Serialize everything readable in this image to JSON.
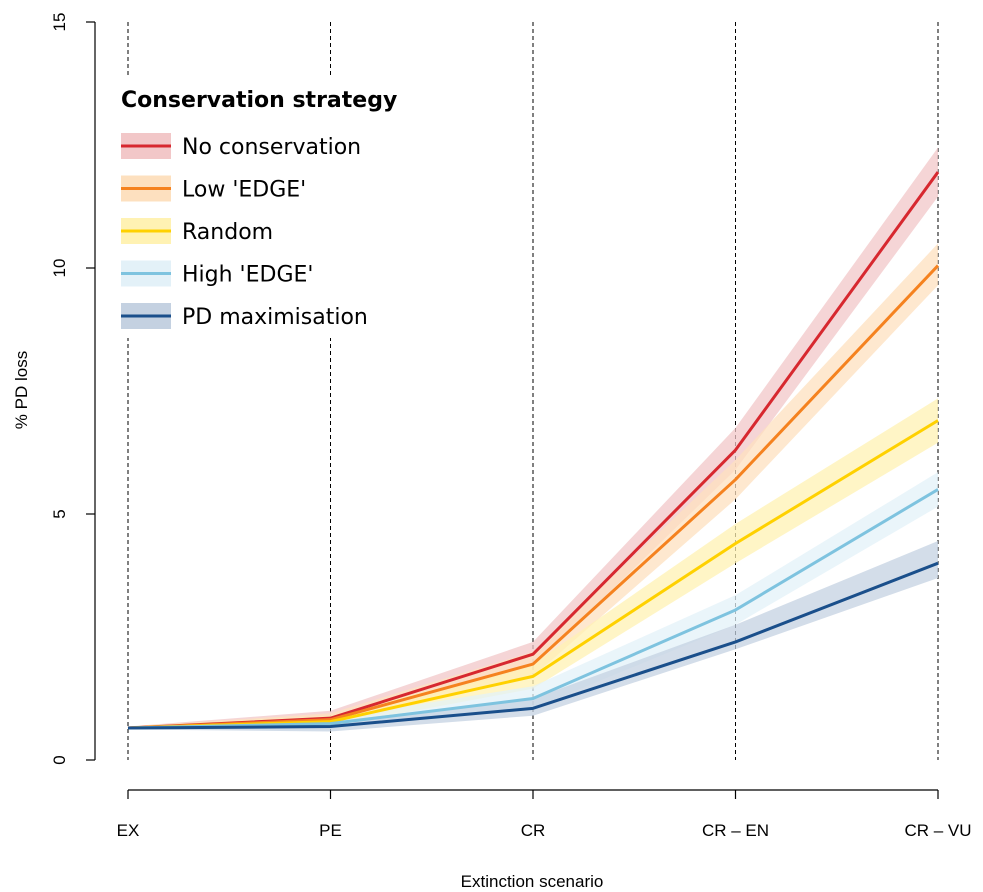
{
  "chart_data": {
    "type": "line",
    "xlabel": "Extinction scenario",
    "ylabel": "% PD loss",
    "categories": [
      "EX",
      "PE",
      "CR",
      "CR – EN",
      "CR – VU"
    ],
    "ylim": [
      0,
      15
    ],
    "yticks": [
      "0",
      "5",
      "10",
      "15"
    ],
    "grid": false,
    "legend": {
      "title": "Conservation strategy",
      "placement": "top-left"
    },
    "series": [
      {
        "name": "No conservation",
        "color": "#d7282f",
        "band_color": "#f2c7c8",
        "values": [
          0.65,
          0.85,
          2.15,
          6.3,
          11.95
        ],
        "lower": [
          0.62,
          0.72,
          1.9,
          5.9,
          11.45
        ],
        "upper": [
          0.68,
          1.0,
          2.4,
          6.75,
          12.45
        ]
      },
      {
        "name": "Low 'EDGE'",
        "color": "#f5821f",
        "band_color": "#fde0bf",
        "values": [
          0.65,
          0.82,
          1.95,
          5.7,
          10.05
        ],
        "lower": [
          0.62,
          0.7,
          1.7,
          5.3,
          9.65
        ],
        "upper": [
          0.68,
          0.95,
          2.2,
          6.1,
          10.5
        ]
      },
      {
        "name": "Random",
        "color": "#ffd100",
        "band_color": "#fff2b3",
        "values": [
          0.65,
          0.78,
          1.7,
          4.4,
          6.9
        ],
        "lower": [
          0.62,
          0.68,
          1.45,
          4.0,
          6.45
        ],
        "upper": [
          0.68,
          0.9,
          1.95,
          4.8,
          7.35
        ]
      },
      {
        "name": "High 'EDGE'",
        "color": "#7ec3df",
        "band_color": "#e3f1f8",
        "values": [
          0.65,
          0.74,
          1.25,
          3.05,
          5.5
        ],
        "lower": [
          0.62,
          0.64,
          1.05,
          2.75,
          5.15
        ],
        "upper": [
          0.68,
          0.85,
          1.5,
          3.35,
          5.85
        ]
      },
      {
        "name": "PD maximisation",
        "color": "#1a4f8b",
        "band_color": "#c4d1e1",
        "values": [
          0.65,
          0.68,
          1.05,
          2.4,
          4.0
        ],
        "lower": [
          0.62,
          0.58,
          0.9,
          2.25,
          3.7
        ],
        "upper": [
          0.68,
          0.78,
          1.25,
          2.75,
          4.45
        ]
      }
    ]
  }
}
